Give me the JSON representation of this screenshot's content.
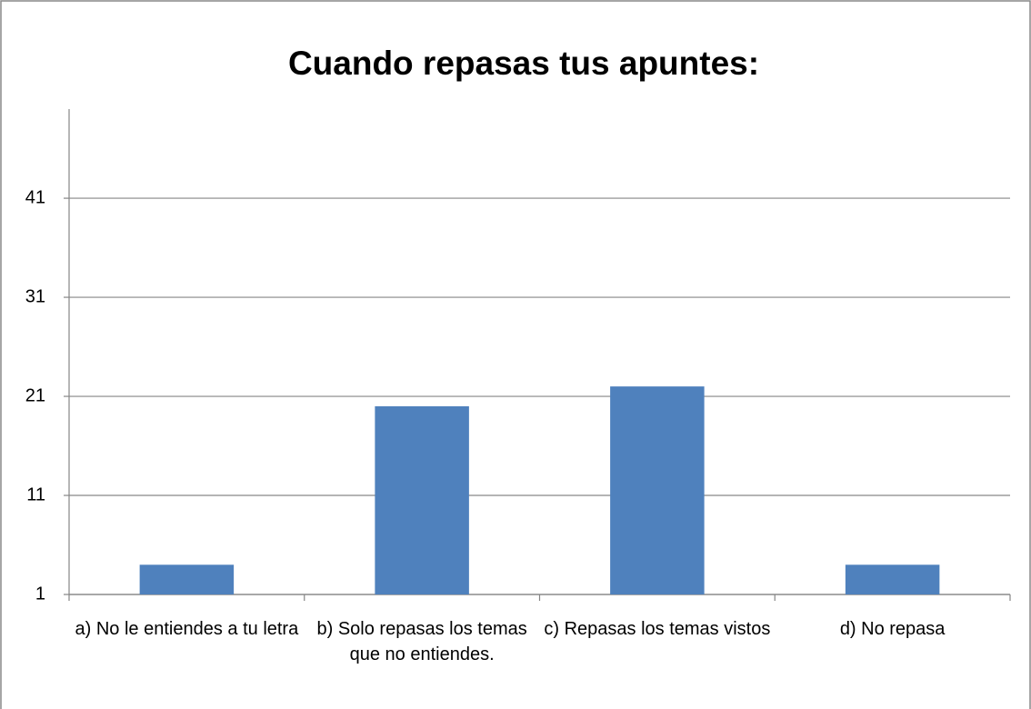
{
  "chart_data": {
    "type": "bar",
    "title": "Cuando repasas tus apuntes:",
    "categories": [
      "a) No le entiendes a tu letra",
      "b) Solo repasas los temas que no entiendes.",
      "c) Repasas los temas vistos",
      "d) No repasa"
    ],
    "values": [
      4,
      20,
      22,
      4
    ],
    "color": "#4f81bd",
    "ylim": [
      1,
      50
    ],
    "yticks": [
      1,
      11,
      21,
      31,
      41
    ],
    "grid": true
  }
}
